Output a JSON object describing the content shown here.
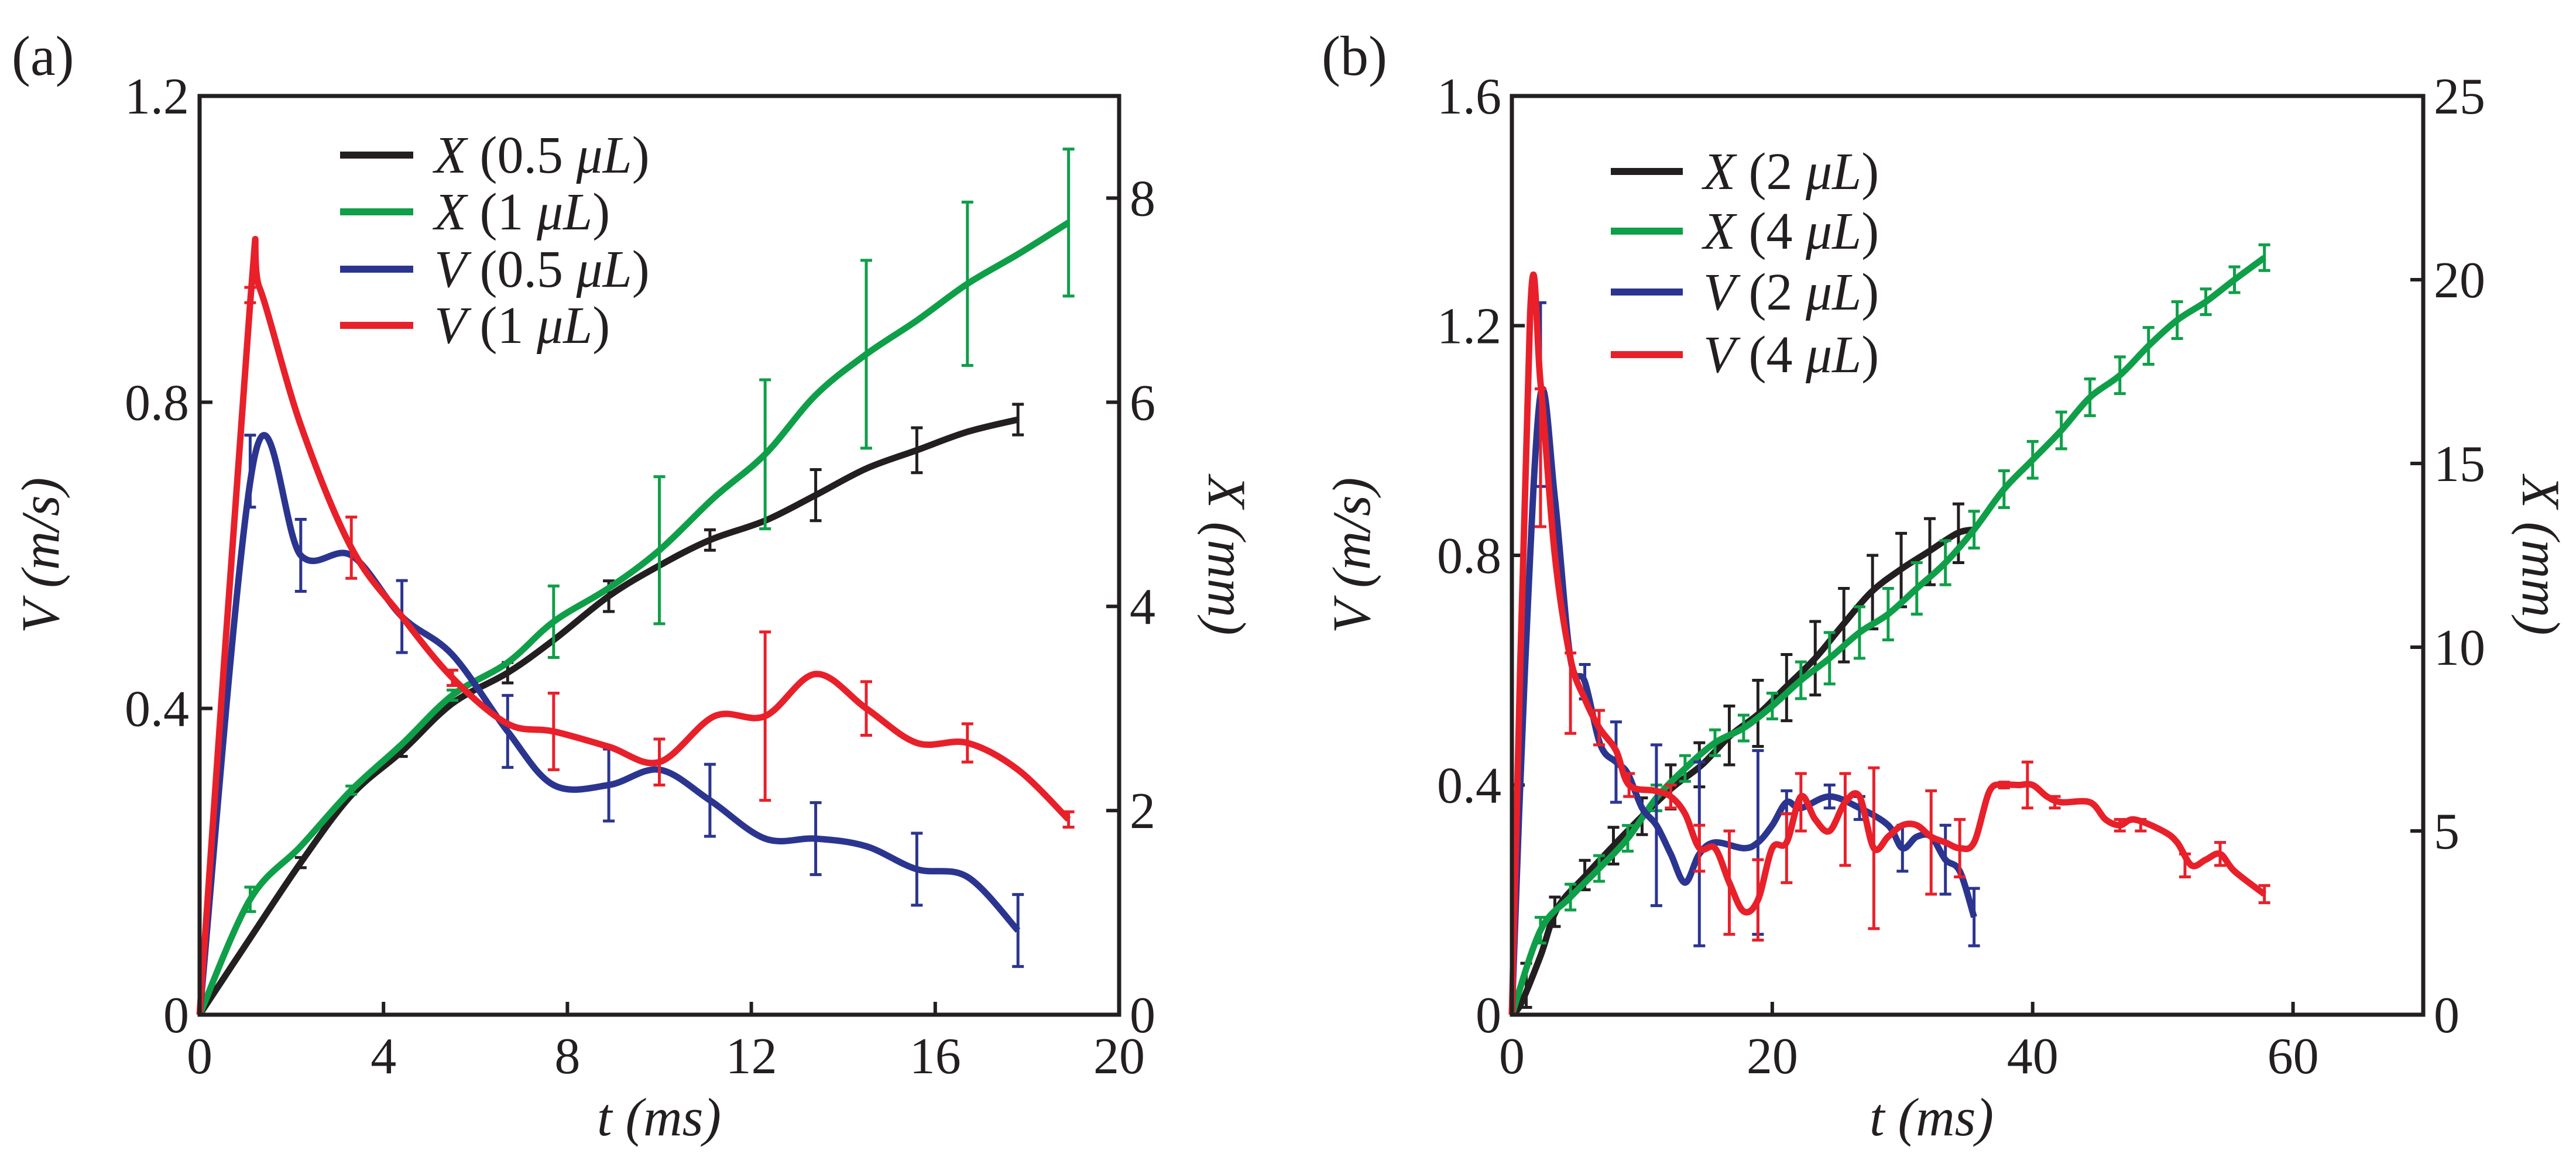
{
  "chart_data": [
    {
      "type": "line",
      "panel_label": "(a)",
      "xlabel": "t (ms)",
      "ylabel": "V (m/s)",
      "y2label": "X (mm)",
      "xlim": [
        0,
        20
      ],
      "ylim": [
        0,
        1.2
      ],
      "y2lim": [
        0,
        9
      ],
      "xticks": [
        0,
        4,
        8,
        12,
        16,
        20
      ],
      "xtick_labels": [
        "0",
        "4",
        "8",
        "12",
        "16",
        "20"
      ],
      "yticks": [
        0,
        0.4,
        0.8,
        1.2
      ],
      "ytick_labels": [
        "0",
        "0.4",
        "0.8",
        "1.2"
      ],
      "y2ticks": [
        0,
        2,
        4,
        6,
        8
      ],
      "y2tick_labels": [
        "0",
        "2",
        "4",
        "6",
        "8"
      ],
      "legend_placement": "top-left",
      "series": [
        {
          "name": "X (0.5 μL)",
          "axis": "right",
          "color": "#231f20",
          "x": [
            0,
            1.1,
            2.2,
            3.3,
            4.4,
            5.5,
            6.7,
            7.7,
            8.9,
            10,
            11.1,
            12.3,
            13.4,
            14.5,
            15.6,
            16.7,
            17.8
          ],
          "y": [
            0,
            0.75,
            1.49,
            2.15,
            2.58,
            3.05,
            3.35,
            3.67,
            4.1,
            4.4,
            4.65,
            4.84,
            5.09,
            5.35,
            5.53,
            5.71,
            5.83
          ],
          "errors": [
            [
              2.2,
              1.49,
              0.05
            ],
            [
              4.4,
              2.58,
              0.05
            ],
            [
              6.7,
              3.35,
              0.1
            ],
            [
              8.9,
              4.1,
              0.15
            ],
            [
              11.1,
              4.65,
              0.1
            ],
            [
              13.4,
              5.09,
              0.25
            ],
            [
              15.6,
              5.53,
              0.22
            ],
            [
              17.8,
              5.83,
              0.15
            ]
          ]
        },
        {
          "name": "X (1 μL)",
          "axis": "right",
          "color": "#0f9f48",
          "x": [
            0,
            1.1,
            2.2,
            3.3,
            4.4,
            5.5,
            6.7,
            7.7,
            8.9,
            10,
            11.2,
            12.3,
            13.4,
            14.5,
            15.6,
            16.7,
            17.8,
            18.9
          ],
          "y": [
            0,
            1.13,
            1.65,
            2.2,
            2.65,
            3.13,
            3.45,
            3.85,
            4.18,
            4.55,
            5.07,
            5.49,
            6.07,
            6.47,
            6.8,
            7.16,
            7.45,
            7.76
          ],
          "errors": [
            [
              1.1,
              1.13,
              0.12
            ],
            [
              3.3,
              2.2,
              0.04
            ],
            [
              5.5,
              3.13,
              0.05
            ],
            [
              7.7,
              3.85,
              0.35
            ],
            [
              10,
              4.55,
              0.72
            ],
            [
              12.3,
              5.49,
              0.73
            ],
            [
              14.5,
              6.47,
              0.92
            ],
            [
              16.7,
              7.16,
              0.8
            ],
            [
              18.9,
              7.76,
              0.72
            ]
          ]
        },
        {
          "name": "V (0.5 μL)",
          "axis": "left",
          "color": "#2b3590",
          "x": [
            0,
            1.2,
            2.2,
            3.3,
            4.4,
            5.5,
            6.7,
            7.7,
            8.9,
            10,
            11.1,
            12.3,
            13.4,
            14.5,
            15.6,
            16.7,
            17.8
          ],
          "y": [
            0,
            0.73,
            0.6,
            0.6,
            0.52,
            0.47,
            0.37,
            0.3,
            0.3,
            0.32,
            0.28,
            0.23,
            0.23,
            0.22,
            0.19,
            0.18,
            0.11
          ],
          "errors": [
            [
              1.1,
              0.71,
              0.047
            ],
            [
              2.2,
              0.6,
              0.047
            ],
            [
              4.4,
              0.52,
              0.047
            ],
            [
              6.7,
              0.37,
              0.047
            ],
            [
              8.9,
              0.3,
              0.047
            ],
            [
              11.1,
              0.28,
              0.047
            ],
            [
              13.4,
              0.23,
              0.047
            ],
            [
              15.6,
              0.19,
              0.047
            ],
            [
              17.8,
              0.11,
              0.047
            ]
          ]
        },
        {
          "name": "V (1 μL)",
          "axis": "left",
          "color": "#e8202a",
          "x": [
            0,
            1.1,
            1.3,
            2.2,
            3.3,
            4.4,
            5.5,
            6.7,
            7.7,
            8.9,
            10,
            11.2,
            12.3,
            13.4,
            14.5,
            15.6,
            16.7,
            17.8,
            18.9
          ],
          "y": [
            0,
            0.93,
            0.95,
            0.77,
            0.61,
            0.52,
            0.44,
            0.38,
            0.37,
            0.35,
            0.33,
            0.39,
            0.39,
            0.445,
            0.4,
            0.355,
            0.355,
            0.32,
            0.255
          ],
          "errors": [
            [
              1.1,
              0.94,
              0.01
            ],
            [
              3.3,
              0.61,
              0.04
            ],
            [
              5.5,
              0.44,
              0.01
            ],
            [
              7.7,
              0.37,
              0.05
            ],
            [
              10,
              0.33,
              0.03
            ],
            [
              12.3,
              0.39,
              0.11
            ],
            [
              14.5,
              0.4,
              0.035
            ],
            [
              16.7,
              0.355,
              0.025
            ],
            [
              18.9,
              0.255,
              0.01
            ]
          ]
        }
      ]
    },
    {
      "type": "line",
      "panel_label": "(b)",
      "xlabel": "t (ms)",
      "ylabel": "V (m/s)",
      "y2label": "X (mm)",
      "xlim": [
        0,
        70
      ],
      "ylim": [
        0,
        1.6
      ],
      "y2lim": [
        0,
        25
      ],
      "xticks": [
        0,
        20,
        40,
        60
      ],
      "xtick_labels": [
        "0",
        "20",
        "40",
        "60"
      ],
      "yticks": [
        0,
        0.4,
        0.8,
        1.2,
        1.6
      ],
      "ytick_labels": [
        "0",
        "0.4",
        "0.8",
        "1.2",
        "1.6"
      ],
      "y2ticks": [
        0,
        5,
        10,
        15,
        20,
        25
      ],
      "y2tick_labels": [
        "0",
        "5",
        "10",
        "15",
        "20",
        "25"
      ],
      "legend_placement": "top-left",
      "series": [
        {
          "name": "X (2 μL)",
          "axis": "right",
          "color": "#231f20",
          "x": [
            0,
            0.7,
            2.2,
            3.5,
            5.7,
            7.8,
            10,
            12.4,
            14.6,
            16.8,
            19,
            21,
            23.3,
            25.4,
            27.6,
            29.8,
            32,
            34.2,
            35.5
          ],
          "y": [
            0,
            0.3,
            1.6,
            2.9,
            3.8,
            4.6,
            5.4,
            6.2,
            6.8,
            7.6,
            8.2,
            8.9,
            9.7,
            10.6,
            11.5,
            12.1,
            12.6,
            13.1,
            13.2
          ],
          "errors": [
            [
              1.1,
              0.8,
              0.6
            ],
            [
              3.3,
              2.8,
              0.4
            ],
            [
              5.6,
              3.8,
              0.4
            ],
            [
              7.8,
              4.6,
              0.5
            ],
            [
              10,
              5.4,
              0.5
            ],
            [
              12.2,
              6.2,
              0.6
            ],
            [
              14.4,
              6.8,
              0.6
            ],
            [
              16.7,
              7.6,
              0.8
            ],
            [
              18.9,
              8.2,
              0.9
            ],
            [
              21.1,
              8.9,
              0.9
            ],
            [
              23.3,
              9.7,
              1.0
            ],
            [
              25.5,
              10.6,
              1.0
            ],
            [
              27.7,
              11.5,
              1.0
            ],
            [
              29.9,
              12.1,
              1.0
            ],
            [
              32.1,
              12.6,
              0.9
            ],
            [
              34.3,
              13.1,
              0.8
            ]
          ]
        },
        {
          "name": "X (4 μL)",
          "axis": "right",
          "color": "#0f9f48",
          "x": [
            0,
            2.2,
            4.5,
            6.7,
            8.9,
            11.1,
            13.3,
            15.6,
            17.8,
            20,
            22.2,
            24.4,
            26.7,
            28.9,
            31.1,
            33.3,
            35.5,
            37.8,
            40,
            42.2,
            44.4,
            46.7,
            48.9,
            51.1,
            53.3,
            55.5,
            57.8
          ],
          "y": [
            0,
            2.3,
            3.2,
            3.98,
            4.8,
            5.9,
            6.7,
            7.4,
            7.8,
            8.4,
            9.1,
            9.7,
            10.4,
            10.9,
            11.6,
            12.3,
            13.2,
            14.3,
            15.1,
            15.9,
            16.8,
            17.4,
            18.2,
            18.9,
            19.4,
            20.0,
            20.6
          ],
          "errors": [
            [
              2.2,
              2.3,
              0.35
            ],
            [
              4.5,
              3.2,
              0.35
            ],
            [
              6.7,
              3.98,
              0.35
            ],
            [
              8.9,
              4.8,
              0.35
            ],
            [
              11.1,
              5.9,
              0.35
            ],
            [
              13.3,
              6.7,
              0.35
            ],
            [
              15.6,
              7.4,
              0.35
            ],
            [
              17.8,
              7.8,
              0.35
            ],
            [
              20,
              8.4,
              0.35
            ],
            [
              22.2,
              9.1,
              0.5
            ],
            [
              24.4,
              9.7,
              0.7
            ],
            [
              26.7,
              10.4,
              0.7
            ],
            [
              28.9,
              10.9,
              0.7
            ],
            [
              31.1,
              11.6,
              0.7
            ],
            [
              33.3,
              12.3,
              0.6
            ],
            [
              35.5,
              13.2,
              0.5
            ],
            [
              37.8,
              14.3,
              0.5
            ],
            [
              40,
              15.1,
              0.5
            ],
            [
              42.2,
              15.9,
              0.5
            ],
            [
              44.4,
              16.8,
              0.5
            ],
            [
              46.7,
              17.4,
              0.5
            ],
            [
              48.9,
              18.2,
              0.5
            ],
            [
              51.1,
              18.9,
              0.5
            ],
            [
              53.3,
              19.4,
              0.35
            ],
            [
              55.5,
              20.0,
              0.35
            ],
            [
              57.8,
              20.6,
              0.35
            ]
          ]
        },
        {
          "name": "V (2 μL)",
          "axis": "left",
          "color": "#2b3590",
          "x": [
            0,
            1,
            2.2,
            3.3,
            4.5,
            5.6,
            6.8,
            8,
            8.9,
            10,
            11.1,
            12.2,
            13.3,
            14.4,
            15.6,
            17.8,
            18.9,
            20,
            21.1,
            22.2,
            24.4,
            26.7,
            28.9,
            30,
            31.1,
            32.2,
            33.3,
            34.4,
            35.5
          ],
          "y": [
            0,
            0.6,
            1.08,
            0.9,
            0.62,
            0.58,
            0.47,
            0.44,
            0.42,
            0.36,
            0.33,
            0.28,
            0.23,
            0.28,
            0.3,
            0.29,
            0.3,
            0.33,
            0.37,
            0.36,
            0.38,
            0.36,
            0.33,
            0.29,
            0.31,
            0.31,
            0.27,
            0.25,
            0.17
          ],
          "errors": [
            [
              2.2,
              1.08,
              0.16
            ],
            [
              5.6,
              0.58,
              0.03
            ],
            [
              8,
              0.44,
              0.07
            ],
            [
              11.1,
              0.33,
              0.14
            ],
            [
              14.4,
              0.28,
              0.16
            ],
            [
              18.9,
              0.3,
              0.16
            ],
            [
              21.1,
              0.37,
              0.02
            ],
            [
              24.4,
              0.38,
              0.02
            ],
            [
              26.7,
              0.36,
              0.02
            ],
            [
              30,
              0.29,
              0.04
            ],
            [
              33.3,
              0.27,
              0.06
            ],
            [
              35.5,
              0.17,
              0.05
            ]
          ]
        },
        {
          "name": "V (4 μL)",
          "axis": "left",
          "color": "#e8202a",
          "x": [
            0,
            1.4,
            2.2,
            3.3,
            4.5,
            5.6,
            6.7,
            8,
            9,
            11,
            12.2,
            13.3,
            14.4,
            15.6,
            16.7,
            17.8,
            18.9,
            20,
            21.1,
            22.2,
            23.3,
            24.4,
            25.6,
            26.7,
            27.8,
            28.9,
            30,
            31.1,
            32.2,
            33.3,
            34.4,
            35.5,
            36.7,
            37.8,
            38.9,
            40,
            41.1,
            42.2,
            44.4,
            45.6,
            46.7,
            47.8,
            50,
            51.1,
            52.2,
            53.3,
            54.4,
            55.5,
            57.8
          ],
          "y": [
            0,
            1.22,
            1.1,
            0.8,
            0.62,
            0.55,
            0.5,
            0.46,
            0.4,
            0.39,
            0.38,
            0.35,
            0.29,
            0.29,
            0.23,
            0.18,
            0.2,
            0.29,
            0.3,
            0.38,
            0.34,
            0.32,
            0.37,
            0.38,
            0.29,
            0.31,
            0.33,
            0.33,
            0.31,
            0.3,
            0.29,
            0.3,
            0.39,
            0.4,
            0.4,
            0.4,
            0.38,
            0.37,
            0.37,
            0.34,
            0.33,
            0.34,
            0.32,
            0.3,
            0.26,
            0.27,
            0.28,
            0.25,
            0.21
          ],
          "errors": [
            [
              2.2,
              0.97,
              0.12
            ],
            [
              4.5,
              0.56,
              0.07
            ],
            [
              6.7,
              0.5,
              0.03
            ],
            [
              9,
              0.4,
              0.02
            ],
            [
              12.2,
              0.38,
              0.02
            ],
            [
              14.4,
              0.29,
              0.04
            ],
            [
              16.7,
              0.23,
              0.09
            ],
            [
              18.9,
              0.2,
              0.07
            ],
            [
              21.1,
              0.29,
              0.06
            ],
            [
              22.2,
              0.37,
              0.05
            ],
            [
              25.6,
              0.34,
              0.08
            ],
            [
              27.8,
              0.29,
              0.14
            ],
            [
              32.2,
              0.3,
              0.09
            ],
            [
              34.4,
              0.29,
              0.05
            ],
            [
              37.8,
              0.4,
              0.005
            ],
            [
              39.6,
              0.4,
              0.04
            ],
            [
              41.7,
              0.37,
              0.01
            ],
            [
              46.7,
              0.33,
              0.01
            ],
            [
              48.3,
              0.33,
              0.01
            ],
            [
              51.7,
              0.26,
              0.02
            ],
            [
              54.4,
              0.28,
              0.02
            ],
            [
              57.8,
              0.21,
              0.015
            ]
          ]
        }
      ]
    }
  ]
}
